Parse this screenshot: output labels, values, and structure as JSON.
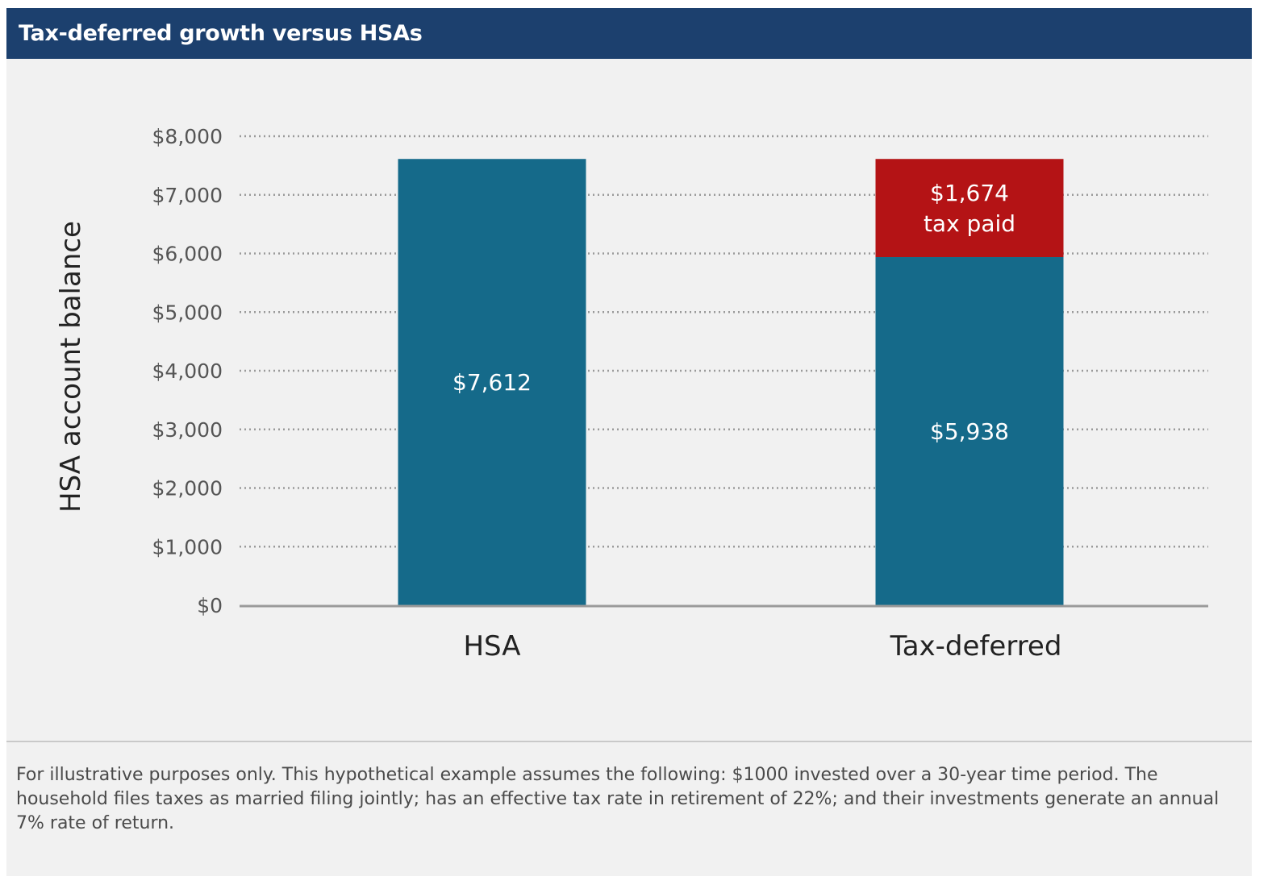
{
  "header": {
    "title": "Tax-deferred growth versus HSAs"
  },
  "chart_data": {
    "type": "bar",
    "stacked": true,
    "title": "Tax-deferred growth versus HSAs",
    "xlabel": "",
    "ylabel": "HSA account balance",
    "ylim": [
      0,
      8000
    ],
    "grid": true,
    "categories": [
      "HSA",
      "Tax-deferred"
    ],
    "y_ticks": [
      0,
      1000,
      2000,
      3000,
      4000,
      5000,
      6000,
      7000,
      8000
    ],
    "y_tick_labels": [
      "$0",
      "$1,000",
      "$2,000",
      "$3,000",
      "$4,000",
      "$5,000",
      "$6,000",
      "$7,000",
      "$8,000"
    ],
    "series": [
      {
        "name": "Account balance",
        "color": "#156a8a",
        "values": [
          7612,
          5938
        ],
        "labels": [
          "$7,612",
          "$5,938"
        ]
      },
      {
        "name": "Tax paid",
        "color": "#b41315",
        "values": [
          0,
          1674
        ],
        "labels": [
          "",
          "$1,674\ntax paid"
        ]
      }
    ]
  },
  "footnote": {
    "text": "For illustrative purposes only. This hypothetical example assumes the following: $1000 invested over a 30-year time period. The household files taxes as married filing jointly; has an effective tax rate in retirement of 22%; and their investments generate an annual 7% rate of return."
  }
}
